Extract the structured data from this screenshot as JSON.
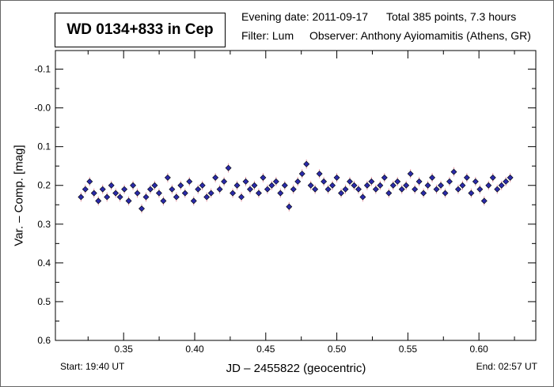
{
  "header": {
    "title": "WD 0134+833 in Cep",
    "evening_date": "Evening date: 2011-09-17",
    "total": "Total 385 points, 7.3 hours",
    "filter": "Filter: Lum",
    "observer": "Observer: Anthony Ayiomamitis (Athens, GR)"
  },
  "footer": {
    "start": "Start: 19:40 UT",
    "end": "End: 02:57 UT"
  },
  "chart_data": {
    "type": "scatter",
    "title": "WD 0134+833 in Cep",
    "xlabel": "JD – 2455822  (geocentric)",
    "ylabel": "Var. – Comp. [mag]",
    "xlim": [
      0.302,
      0.64
    ],
    "ylim": [
      -0.148,
      0.6
    ],
    "y_inverted": true,
    "xticks": [
      "0.35",
      "0.40",
      "0.45",
      "0.50",
      "0.55",
      "0.60"
    ],
    "xtick_values": [
      0.35,
      0.4,
      0.45,
      0.5,
      0.55,
      0.6
    ],
    "yticks": [
      "-0.1",
      "-0.0",
      "0.1",
      "0.2",
      "0.3",
      "0.4",
      "0.5",
      "0.6"
    ],
    "ytick_values": [
      -0.1,
      0.0,
      0.1,
      0.2,
      0.3,
      0.4,
      0.5,
      0.6
    ],
    "x_range_uniform": [
      0.32,
      0.622
    ],
    "error_bar": 0.012,
    "point_color": "#2a2aa8",
    "error_color": "#e89aa8",
    "y": [
      0.23,
      0.21,
      0.19,
      0.22,
      0.24,
      0.21,
      0.23,
      0.2,
      0.22,
      0.23,
      0.21,
      0.24,
      0.2,
      0.22,
      0.26,
      0.23,
      0.21,
      0.2,
      0.22,
      0.24,
      0.18,
      0.21,
      0.23,
      0.2,
      0.22,
      0.19,
      0.24,
      0.21,
      0.2,
      0.23,
      0.22,
      0.18,
      0.21,
      0.19,
      0.155,
      0.22,
      0.2,
      0.23,
      0.19,
      0.21,
      0.2,
      0.22,
      0.18,
      0.21,
      0.2,
      0.19,
      0.22,
      0.2,
      0.255,
      0.21,
      0.19,
      0.17,
      0.145,
      0.2,
      0.21,
      0.17,
      0.19,
      0.21,
      0.2,
      0.18,
      0.22,
      0.21,
      0.19,
      0.2,
      0.21,
      0.23,
      0.2,
      0.19,
      0.21,
      0.2,
      0.18,
      0.22,
      0.2,
      0.19,
      0.21,
      0.2,
      0.17,
      0.21,
      0.19,
      0.22,
      0.2,
      0.18,
      0.21,
      0.2,
      0.22,
      0.19,
      0.165,
      0.21,
      0.2,
      0.18,
      0.22,
      0.19,
      0.21,
      0.24,
      0.2,
      0.18,
      0.21,
      0.2,
      0.19,
      0.18
    ]
  }
}
